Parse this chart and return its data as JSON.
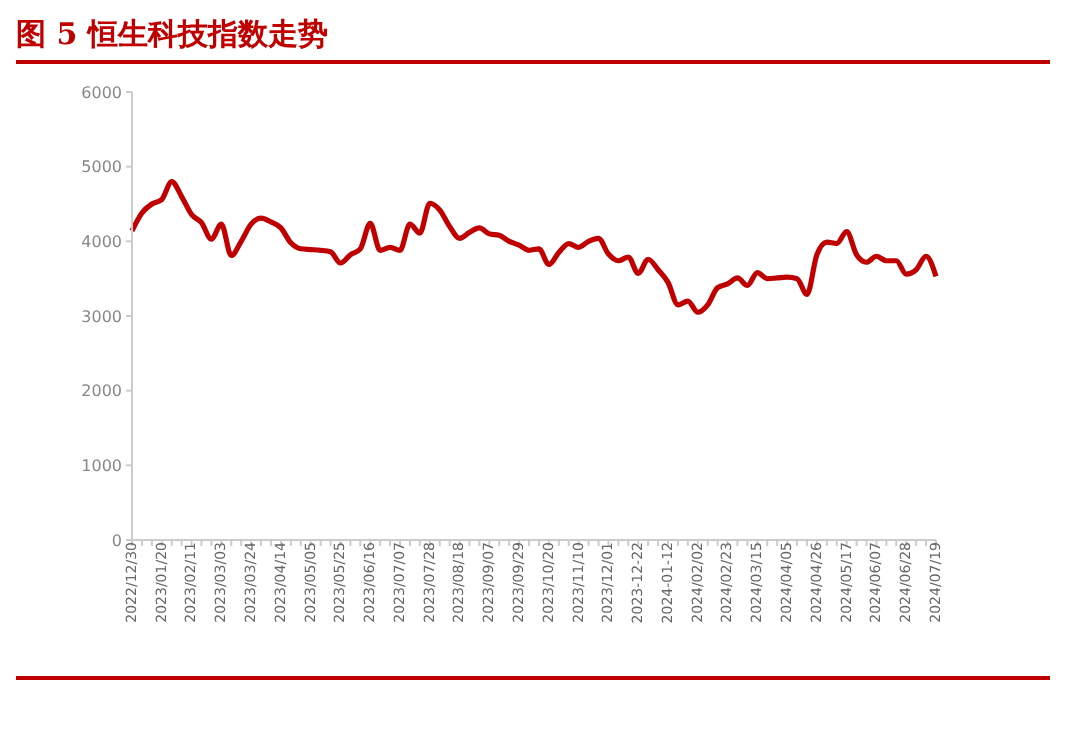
{
  "chart_data": {
    "type": "line",
    "title": "图 5 恒生科技指数走势",
    "categories": [
      "2022/12/30",
      null,
      null,
      "2023/01/20",
      null,
      null,
      "2023/02/11",
      null,
      null,
      "2023/03/03",
      null,
      null,
      "2023/03/24",
      null,
      null,
      "2023/04/14",
      null,
      null,
      "2023/05/05",
      null,
      null,
      "2023/05/25",
      null,
      null,
      "2023/06/16",
      null,
      null,
      "2023/07/07",
      null,
      null,
      "2023/07/28",
      null,
      null,
      "2023/08/18",
      null,
      null,
      "2023/09/07",
      null,
      null,
      "2023/09/29",
      null,
      null,
      "2023/10/20",
      null,
      null,
      "2023/11/10",
      null,
      null,
      "2023/12/01",
      null,
      null,
      "2023-12-22",
      null,
      null,
      "2024-01-12",
      null,
      null,
      "2024/02/02",
      null,
      null,
      "2024/02/23",
      null,
      null,
      "2024/03/15",
      null,
      null,
      "2024/04/05",
      null,
      null,
      "2024/04/26",
      null,
      null,
      "2024/05/17",
      null,
      null,
      "2024/06/07",
      null,
      null,
      "2024/06/28",
      null,
      null,
      "2024/07/19"
    ],
    "series": [
      {
        "color": "#c00000",
        "values": [
          4140,
          4380,
          4500,
          4560,
          4800,
          4600,
          4360,
          4250,
          4030,
          4230,
          3810,
          4000,
          4230,
          4310,
          4260,
          4180,
          3980,
          3900,
          3890,
          3880,
          3860,
          3710,
          3820,
          3900,
          4240,
          3880,
          3920,
          3880,
          4230,
          4110,
          4510,
          4420,
          4200,
          4040,
          4120,
          4180,
          4100,
          4080,
          4000,
          3950,
          3880,
          3900,
          3690,
          3850,
          3970,
          3920,
          4000,
          4040,
          3830,
          3740,
          3790,
          3570,
          3760,
          3620,
          3450,
          3150,
          3200,
          3050,
          3150,
          3380,
          3430,
          3510,
          3410,
          3580,
          3500,
          3510,
          3520,
          3500,
          3290,
          3820,
          3990,
          3970,
          4130,
          3820,
          3720,
          3800,
          3740,
          3740,
          3560,
          3620,
          3800,
          3530
        ]
      }
    ],
    "ylim": [
      0,
      6000
    ],
    "yticks": [
      0,
      1000,
      2000,
      3000,
      4000,
      5000,
      6000
    ]
  }
}
